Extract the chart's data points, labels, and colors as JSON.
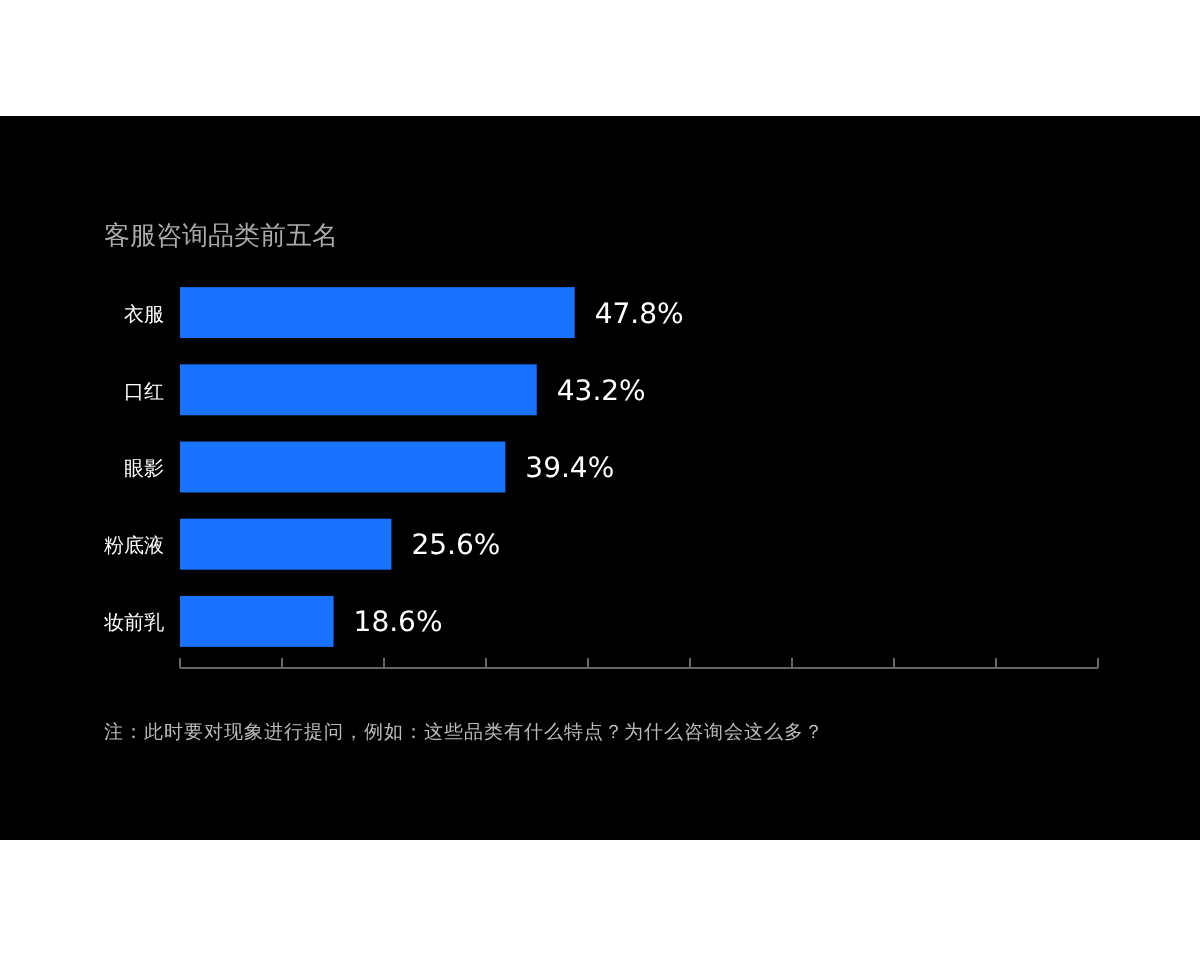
{
  "chart_data": {
    "type": "bar",
    "orientation": "horizontal",
    "title": "客服咨询品类前五名",
    "categories": [
      "衣服",
      "口红",
      "眼影",
      "粉底液",
      "妆前乳"
    ],
    "values": [
      47.8,
      43.2,
      39.4,
      25.6,
      18.6
    ],
    "value_labels": [
      "47.8%",
      "43.2%",
      "39.4%",
      "25.6%",
      "18.6%"
    ],
    "color": "#1a73ff",
    "annotations": [
      "注：此时要对现象进行提问，例如：这些品类有什么特点？为什么咨询会这么多？"
    ]
  }
}
